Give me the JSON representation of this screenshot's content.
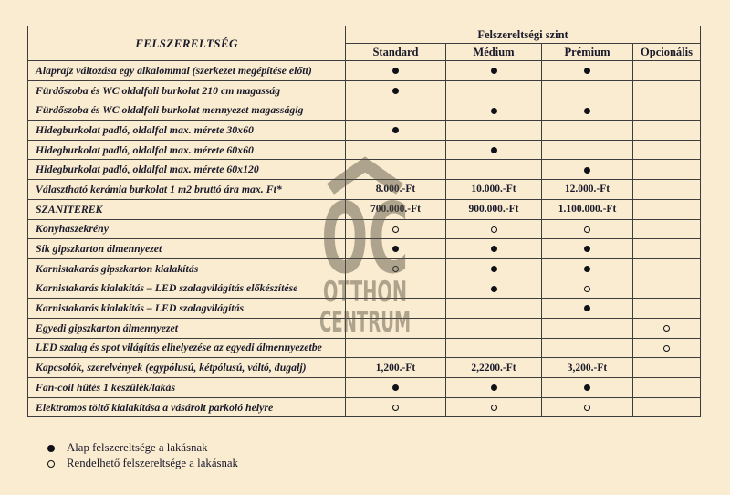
{
  "table": {
    "corner_header": "FELSZERELTSÉG",
    "group_header": "Felszereltségi szint",
    "columns": [
      "Standard",
      "Médium",
      "Prémium",
      "Opcionális"
    ],
    "rows": [
      {
        "label": "Alaprajz változása egy alkalommal (szerkezet megépítése előtt)",
        "cells": [
          "●",
          "●",
          "●",
          ""
        ]
      },
      {
        "label": "Fürdőszoba és WC oldalfali burkolat 210 cm magasság",
        "cells": [
          "●",
          "",
          "",
          ""
        ]
      },
      {
        "label": "Fürdőszoba és WC oldalfali burkolat mennyezet magasságig",
        "cells": [
          "",
          "●",
          "●",
          ""
        ]
      },
      {
        "label": "Hidegburkolat  padló, oldalfal max. mérete 30x60",
        "cells": [
          "●",
          "",
          "",
          ""
        ]
      },
      {
        "label": "Hidegburkolat  padló, oldalfal  max. mérete 60x60",
        "cells": [
          "",
          "●",
          "",
          ""
        ]
      },
      {
        "label": "Hidegburkolat  padló, oldalfal max. mérete 60x120",
        "cells": [
          "",
          "",
          "●",
          ""
        ]
      },
      {
        "label": "Választható kerámia burkolat 1 m2 bruttó ára max. Ft*",
        "cells": [
          "8.000.-Ft",
          "10.000.-Ft",
          "12.000.-Ft",
          ""
        ]
      },
      {
        "label": "SZANITEREK",
        "cells": [
          "700.000.-Ft",
          "900.000.-Ft",
          "1.100.000.-Ft",
          ""
        ]
      },
      {
        "label": "Konyhaszekrény",
        "cells": [
          "○",
          "○",
          "○",
          ""
        ]
      },
      {
        "label": "Sík gipszkarton álmennyezet",
        "cells": [
          "●",
          "●",
          "●",
          ""
        ]
      },
      {
        "label": "Karnistakarás gipszkarton kialakítás",
        "cells": [
          "○",
          "●",
          "●",
          ""
        ]
      },
      {
        "label": "Karnistakarás kialakítás – LED szalagvilágítás előkészítése",
        "cells": [
          "",
          "●",
          "○",
          ""
        ]
      },
      {
        "label": "Karnistakarás kialakítás – LED szalagvilágítás",
        "cells": [
          "",
          "",
          "●",
          ""
        ]
      },
      {
        "label": "Egyedi gipszkarton álmennyezet",
        "cells": [
          "",
          "",
          "",
          "○"
        ]
      },
      {
        "label": "LED szalag és spot világítás elhelyezése az egyedi álmennyezetbe",
        "cells": [
          "",
          "",
          "",
          "○"
        ]
      },
      {
        "label": "Kapcsolók, szerelvények (egypólusú, kétpólusú, váltó, dugalj)",
        "cells": [
          "1,200.-Ft",
          "2,2200.-Ft",
          "3,200.-Ft",
          ""
        ]
      },
      {
        "label": "Fan-coil hűtés 1 készülék/lakás",
        "cells": [
          "●",
          "●",
          "●",
          ""
        ]
      },
      {
        "label": "Elektromos töltő kialakítása a vásárolt parkoló helyre",
        "cells": [
          "○",
          "○",
          "○",
          ""
        ]
      }
    ]
  },
  "legend": {
    "items": [
      {
        "symbol": "●",
        "text": "Alap felszereltsége a lakásnak"
      },
      {
        "symbol": "○",
        "text": "Rendelhető felszereltsége a lakásnak"
      }
    ]
  },
  "watermark": {
    "monogram": "OC",
    "line1": "OTTHON",
    "line2": "CENTRUM"
  },
  "colors": {
    "background": "#faecd0",
    "border": "#3d3d3d",
    "text": "#1a1a2a",
    "watermark": "#a39a8a"
  }
}
